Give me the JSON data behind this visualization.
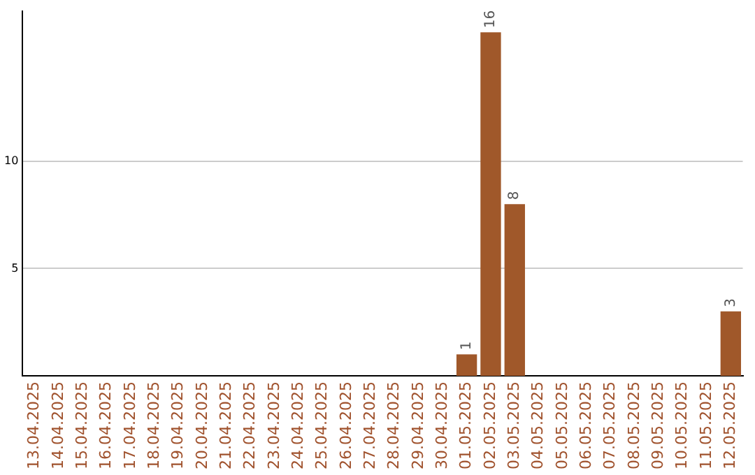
{
  "chart_data": {
    "type": "bar",
    "categories": [
      "13.04.2025",
      "14.04.2025",
      "15.04.2025",
      "16.04.2025",
      "17.04.2025",
      "18.04.2025",
      "19.04.2025",
      "20.04.2025",
      "21.04.2025",
      "22.04.2025",
      "23.04.2025",
      "24.04.2025",
      "25.04.2025",
      "26.04.2025",
      "27.04.2025",
      "28.04.2025",
      "29.04.2025",
      "30.04.2025",
      "01.05.2025",
      "02.05.2025",
      "03.05.2025",
      "04.05.2025",
      "05.05.2025",
      "06.05.2025",
      "07.05.2025",
      "08.05.2025",
      "09.05.2025",
      "10.05.2025",
      "11.05.2025",
      "12.05.2025"
    ],
    "values": [
      0,
      0,
      0,
      0,
      0,
      0,
      0,
      0,
      0,
      0,
      0,
      0,
      0,
      0,
      0,
      0,
      0,
      0,
      1,
      16,
      8,
      0,
      0,
      0,
      0,
      0,
      0,
      0,
      0,
      3
    ],
    "value_labels": [
      null,
      null,
      null,
      null,
      null,
      null,
      null,
      null,
      null,
      null,
      null,
      null,
      null,
      null,
      null,
      null,
      null,
      null,
      "1",
      "16",
      "8",
      null,
      null,
      null,
      null,
      null,
      null,
      null,
      null,
      "3"
    ],
    "color": "#a0582a",
    "ylim": [
      0,
      17
    ],
    "yticks": [
      5,
      10
    ],
    "grid": "y",
    "legend": false
  }
}
